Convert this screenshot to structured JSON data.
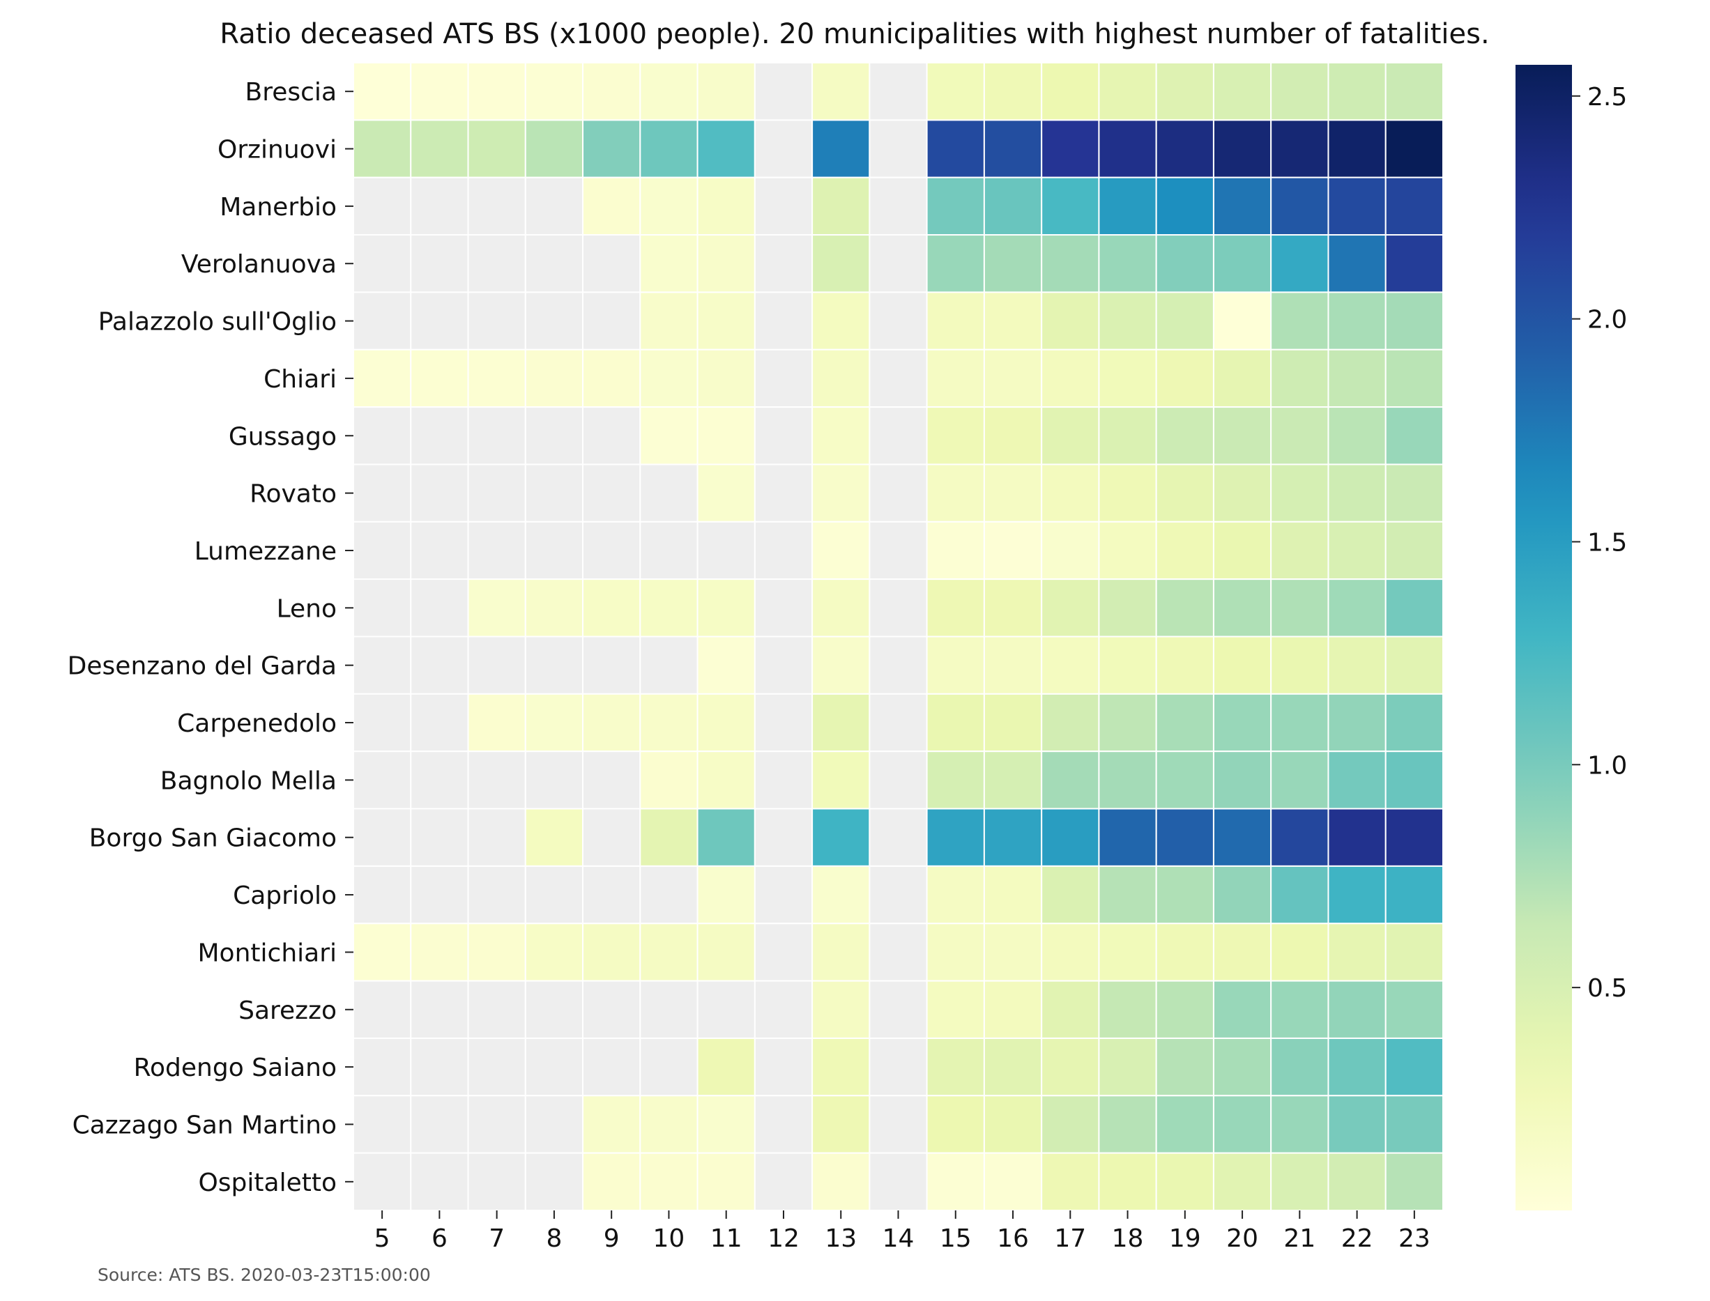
{
  "chart_data": {
    "type": "heatmap",
    "title": "Ratio deceased ATS BS (x1000 people). 20 municipalities with highest number of fatalities.",
    "xlabel": "",
    "ylabel": "",
    "x_categories": [
      "5",
      "6",
      "7",
      "8",
      "9",
      "10",
      "11",
      "12",
      "13",
      "14",
      "15",
      "16",
      "17",
      "18",
      "19",
      "20",
      "21",
      "22",
      "23"
    ],
    "y_categories": [
      "Brescia",
      "Orzinuovi",
      "Manerbio",
      "Verolanuova",
      "Palazzolo sull'Oglio",
      "Chiari",
      "Gussago",
      "Rovato",
      "Lumezzane",
      "Leno",
      "Desenzano del Garda",
      "Carpenedolo",
      "Bagnolo Mella",
      "Borgo San Giacomo",
      "Capriolo",
      "Montichiari",
      "Sarezzo",
      "Rodengo Saiano",
      "Cazzago San Martino",
      "Ospitaletto"
    ],
    "values": [
      [
        0.02,
        0.03,
        0.04,
        0.05,
        0.07,
        0.1,
        0.12,
        null,
        0.18,
        null,
        0.25,
        0.28,
        0.32,
        0.38,
        0.45,
        0.5,
        0.55,
        0.58,
        0.62
      ],
      [
        0.62,
        0.6,
        0.58,
        0.7,
        0.95,
        1.05,
        1.2,
        null,
        1.72,
        null,
        2.08,
        2.05,
        2.25,
        2.3,
        2.35,
        2.42,
        2.42,
        2.48,
        2.57
      ],
      [
        null,
        null,
        null,
        null,
        0.08,
        0.1,
        0.15,
        null,
        0.45,
        null,
        1.02,
        1.08,
        1.25,
        1.52,
        1.62,
        1.78,
        1.98,
        2.08,
        2.12
      ],
      [
        null,
        null,
        null,
        null,
        null,
        0.1,
        0.12,
        null,
        0.5,
        null,
        0.85,
        0.8,
        0.8,
        0.85,
        0.95,
        0.98,
        1.4,
        1.78,
        2.18
      ],
      [
        null,
        null,
        null,
        null,
        null,
        0.12,
        0.14,
        null,
        0.2,
        null,
        0.22,
        0.22,
        0.4,
        0.48,
        0.52,
        0.02,
        0.75,
        0.78,
        0.8
      ],
      [
        0.05,
        0.06,
        0.06,
        0.07,
        0.08,
        0.1,
        0.12,
        null,
        0.18,
        null,
        0.18,
        0.18,
        0.22,
        0.25,
        0.3,
        0.38,
        0.58,
        0.65,
        0.7
      ],
      [
        null,
        null,
        null,
        null,
        null,
        0.05,
        0.06,
        null,
        0.15,
        null,
        0.28,
        0.3,
        0.42,
        0.48,
        0.6,
        0.62,
        0.62,
        0.7,
        0.85
      ],
      [
        null,
        null,
        null,
        null,
        null,
        null,
        0.1,
        null,
        0.12,
        null,
        0.18,
        0.18,
        0.22,
        0.28,
        0.38,
        0.45,
        0.52,
        0.58,
        0.62
      ],
      [
        null,
        null,
        null,
        null,
        null,
        null,
        null,
        null,
        0.05,
        null,
        0.05,
        0.03,
        0.1,
        0.2,
        0.28,
        0.35,
        0.45,
        0.5,
        0.55
      ],
      [
        null,
        null,
        0.1,
        0.12,
        0.15,
        0.16,
        0.16,
        null,
        0.18,
        null,
        0.3,
        0.3,
        0.42,
        0.55,
        0.7,
        0.75,
        0.75,
        0.82,
        1.02
      ],
      [
        null,
        null,
        null,
        null,
        null,
        null,
        0.05,
        null,
        0.12,
        null,
        0.18,
        0.18,
        0.2,
        0.25,
        0.28,
        0.32,
        0.35,
        0.38,
        0.42
      ],
      [
        null,
        null,
        0.08,
        0.1,
        0.12,
        0.13,
        0.15,
        null,
        0.38,
        null,
        0.35,
        0.35,
        0.55,
        0.68,
        0.78,
        0.85,
        0.85,
        0.88,
        0.98
      ],
      [
        null,
        null,
        null,
        null,
        null,
        0.08,
        0.15,
        null,
        0.25,
        null,
        0.52,
        0.52,
        0.8,
        0.8,
        0.82,
        0.88,
        0.85,
        1.02,
        1.08
      ],
      [
        null,
        null,
        null,
        0.2,
        null,
        0.4,
        1.05,
        null,
        1.3,
        null,
        1.45,
        1.45,
        1.5,
        1.88,
        1.92,
        1.85,
        2.1,
        2.28,
        2.28
      ],
      [
        null,
        null,
        null,
        null,
        null,
        null,
        0.1,
        null,
        0.1,
        null,
        0.18,
        0.2,
        0.48,
        0.72,
        0.75,
        0.88,
        1.1,
        1.3,
        1.32
      ],
      [
        0.06,
        0.07,
        0.08,
        0.15,
        0.18,
        0.18,
        0.18,
        null,
        0.18,
        null,
        0.18,
        0.18,
        0.22,
        0.25,
        0.28,
        0.3,
        0.32,
        0.38,
        0.42
      ],
      [
        null,
        null,
        null,
        null,
        null,
        null,
        null,
        null,
        0.18,
        null,
        0.2,
        0.22,
        0.42,
        0.65,
        0.7,
        0.85,
        0.85,
        0.88,
        0.85
      ],
      [
        null,
        null,
        null,
        null,
        null,
        null,
        0.3,
        null,
        0.28,
        null,
        0.4,
        0.42,
        0.38,
        0.5,
        0.72,
        0.78,
        0.92,
        1.05,
        1.2
      ],
      [
        null,
        null,
        null,
        null,
        0.12,
        0.12,
        0.1,
        null,
        0.3,
        null,
        0.32,
        0.35,
        0.55,
        0.72,
        0.82,
        0.85,
        0.85,
        1.0,
        1.0
      ],
      [
        null,
        null,
        null,
        null,
        0.08,
        0.08,
        0.08,
        null,
        0.08,
        null,
        0.05,
        0.05,
        0.3,
        0.32,
        0.35,
        0.42,
        0.5,
        0.55,
        0.72
      ]
    ],
    "colormap": "YlGnBu",
    "missing_color": "#eeeeee",
    "vmin": 0.0,
    "vmax": 2.57,
    "colorbar_ticks": [
      0.5,
      1.0,
      1.5,
      2.0,
      2.5
    ],
    "colorbar_tick_labels": [
      "0.5",
      "1.0",
      "1.5",
      "2.0",
      "2.5"
    ],
    "grid": false,
    "cell_separators": "white"
  },
  "footer": {
    "source": "Source: ATS BS. 2020-03-23T15:00:00"
  }
}
